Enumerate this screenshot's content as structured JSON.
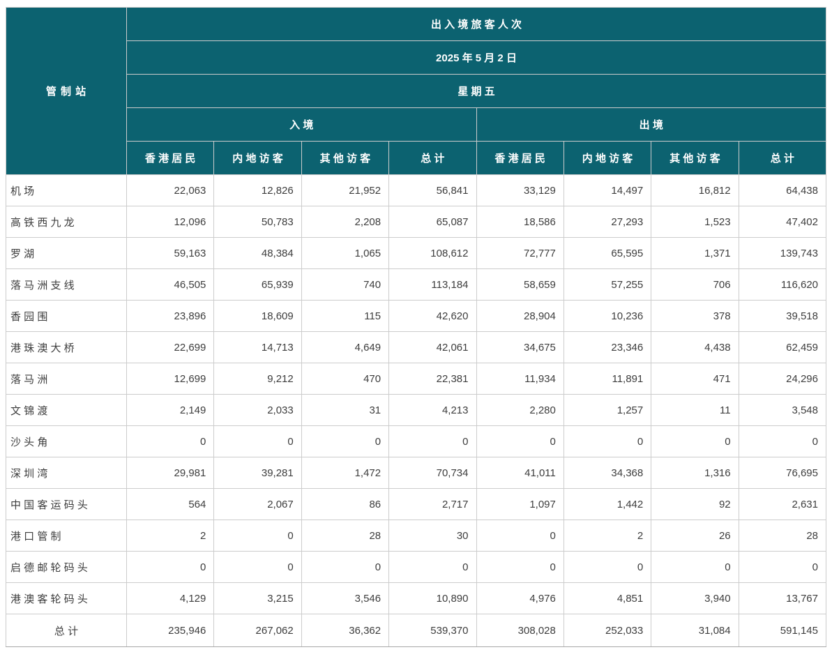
{
  "colors": {
    "header_bg": "#0c6270",
    "header_text": "#ffffff",
    "body_text": "#3d3d3d",
    "border": "#cccccc",
    "border_strong": "#a8a8a8",
    "page_bg": "#ffffff"
  },
  "table": {
    "corner_header": "管 制 站",
    "title": "出 入 境 旅 客 人 次",
    "date": "2025 年 5 月 2 日",
    "weekday": "星 期 五",
    "group_arrival": "入 境",
    "group_departure": "出 境",
    "sub_headers": [
      "香 港 居 民",
      "内 地 访 客",
      "其 他 访 客",
      "总 计"
    ],
    "rows": [
      {
        "station": "机 场",
        "values": [
          "22,063",
          "12,826",
          "21,952",
          "56,841",
          "33,129",
          "14,497",
          "16,812",
          "64,438"
        ]
      },
      {
        "station": "高 铁 西 九 龙",
        "values": [
          "12,096",
          "50,783",
          "2,208",
          "65,087",
          "18,586",
          "27,293",
          "1,523",
          "47,402"
        ]
      },
      {
        "station": "罗 湖",
        "values": [
          "59,163",
          "48,384",
          "1,065",
          "108,612",
          "72,777",
          "65,595",
          "1,371",
          "139,743"
        ]
      },
      {
        "station": "落 马 洲 支 线",
        "values": [
          "46,505",
          "65,939",
          "740",
          "113,184",
          "58,659",
          "57,255",
          "706",
          "116,620"
        ]
      },
      {
        "station": "香 园 围",
        "values": [
          "23,896",
          "18,609",
          "115",
          "42,620",
          "28,904",
          "10,236",
          "378",
          "39,518"
        ]
      },
      {
        "station": "港 珠 澳 大 桥",
        "values": [
          "22,699",
          "14,713",
          "4,649",
          "42,061",
          "34,675",
          "23,346",
          "4,438",
          "62,459"
        ]
      },
      {
        "station": "落 马 洲",
        "values": [
          "12,699",
          "9,212",
          "470",
          "22,381",
          "11,934",
          "11,891",
          "471",
          "24,296"
        ]
      },
      {
        "station": "文 锦 渡",
        "values": [
          "2,149",
          "2,033",
          "31",
          "4,213",
          "2,280",
          "1,257",
          "11",
          "3,548"
        ]
      },
      {
        "station": "沙 头 角",
        "values": [
          "0",
          "0",
          "0",
          "0",
          "0",
          "0",
          "0",
          "0"
        ]
      },
      {
        "station": "深 圳 湾",
        "values": [
          "29,981",
          "39,281",
          "1,472",
          "70,734",
          "41,011",
          "34,368",
          "1,316",
          "76,695"
        ]
      },
      {
        "station": "中 国 客 运 码 头",
        "values": [
          "564",
          "2,067",
          "86",
          "2,717",
          "1,097",
          "1,442",
          "92",
          "2,631"
        ]
      },
      {
        "station": "港 口 管 制",
        "values": [
          "2",
          "0",
          "28",
          "30",
          "0",
          "2",
          "26",
          "28"
        ]
      },
      {
        "station": "启 德 邮 轮 码 头",
        "values": [
          "0",
          "0",
          "0",
          "0",
          "0",
          "0",
          "0",
          "0"
        ]
      },
      {
        "station": "港 澳 客 轮 码 头",
        "values": [
          "4,129",
          "3,215",
          "3,546",
          "10,890",
          "4,976",
          "4,851",
          "3,940",
          "13,767"
        ]
      }
    ],
    "total_row": {
      "label": "总 计",
      "values": [
        "235,946",
        "267,062",
        "36,362",
        "539,370",
        "308,028",
        "252,033",
        "31,084",
        "591,145"
      ]
    }
  }
}
